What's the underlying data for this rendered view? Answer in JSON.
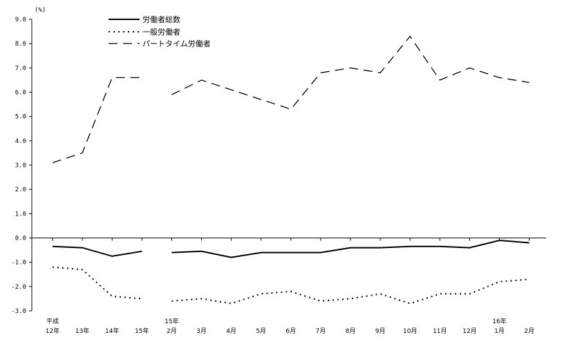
{
  "chart_data": {
    "type": "line",
    "unit_label": "(%)",
    "ylim": [
      -3.0,
      9.0
    ],
    "y_ticks": [
      "9.0",
      "8.0",
      "7.0",
      "6.0",
      "5.0",
      "4.0",
      "3.0",
      "2.0",
      "1.0",
      "0.0",
      "-1.0",
      "-2.0",
      "-3.0"
    ],
    "grid": false,
    "legend_position": "top-left",
    "categories": [
      {
        "top": "平成",
        "bottom": "12年"
      },
      {
        "top": "",
        "bottom": "13年"
      },
      {
        "top": "",
        "bottom": "14年"
      },
      {
        "top": "",
        "bottom": "15年"
      },
      {
        "top": "15年",
        "bottom": "2月"
      },
      {
        "top": "",
        "bottom": "3月"
      },
      {
        "top": "",
        "bottom": "4月"
      },
      {
        "top": "",
        "bottom": "5月"
      },
      {
        "top": "",
        "bottom": "6月"
      },
      {
        "top": "",
        "bottom": "7月"
      },
      {
        "top": "",
        "bottom": "8月"
      },
      {
        "top": "",
        "bottom": "9月"
      },
      {
        "top": "",
        "bottom": "10月"
      },
      {
        "top": "",
        "bottom": "11月"
      },
      {
        "top": "",
        "bottom": "12月"
      },
      {
        "top": "16年",
        "bottom": "1月"
      },
      {
        "top": "",
        "bottom": "2月"
      }
    ],
    "series": [
      {
        "name": "労働者総数",
        "style": "solid",
        "color": "#000000",
        "segments": [
          {
            "x": [
              0,
              1,
              2,
              3
            ],
            "values": [
              -0.35,
              -0.4,
              -0.75,
              -0.55
            ]
          },
          {
            "x": [
              4,
              5,
              6,
              7,
              8,
              9,
              10,
              11,
              12,
              13,
              14,
              15,
              16
            ],
            "values": [
              -0.6,
              -0.55,
              -0.8,
              -0.6,
              -0.6,
              -0.6,
              -0.4,
              -0.4,
              -0.35,
              -0.35,
              -0.4,
              -0.1,
              -0.2
            ]
          }
        ]
      },
      {
        "name": "一般労働者",
        "style": "dotted",
        "color": "#000000",
        "segments": [
          {
            "x": [
              0,
              1,
              2,
              3
            ],
            "values": [
              -1.2,
              -1.3,
              -2.4,
              -2.5
            ]
          },
          {
            "x": [
              4,
              5,
              6,
              7,
              8,
              9,
              10,
              11,
              12,
              13,
              14,
              15,
              16
            ],
            "values": [
              -2.6,
              -2.5,
              -2.7,
              -2.3,
              -2.2,
              -2.6,
              -2.5,
              -2.3,
              -2.7,
              -2.3,
              -2.3,
              -1.8,
              -1.7
            ]
          }
        ]
      },
      {
        "name": "パートタイム労働者",
        "style": "dashed",
        "color": "#000000",
        "segments": [
          {
            "x": [
              0,
              1,
              2,
              3
            ],
            "values": [
              3.1,
              3.5,
              6.6,
              6.6
            ]
          },
          {
            "x": [
              4,
              5,
              6,
              7,
              8,
              9,
              10,
              11,
              12,
              13,
              14,
              15,
              16
            ],
            "values": [
              5.9,
              6.5,
              6.1,
              5.7,
              5.3,
              6.8,
              7.0,
              6.8,
              8.3,
              6.5,
              7.0,
              6.6,
              6.4
            ]
          }
        ]
      }
    ]
  }
}
